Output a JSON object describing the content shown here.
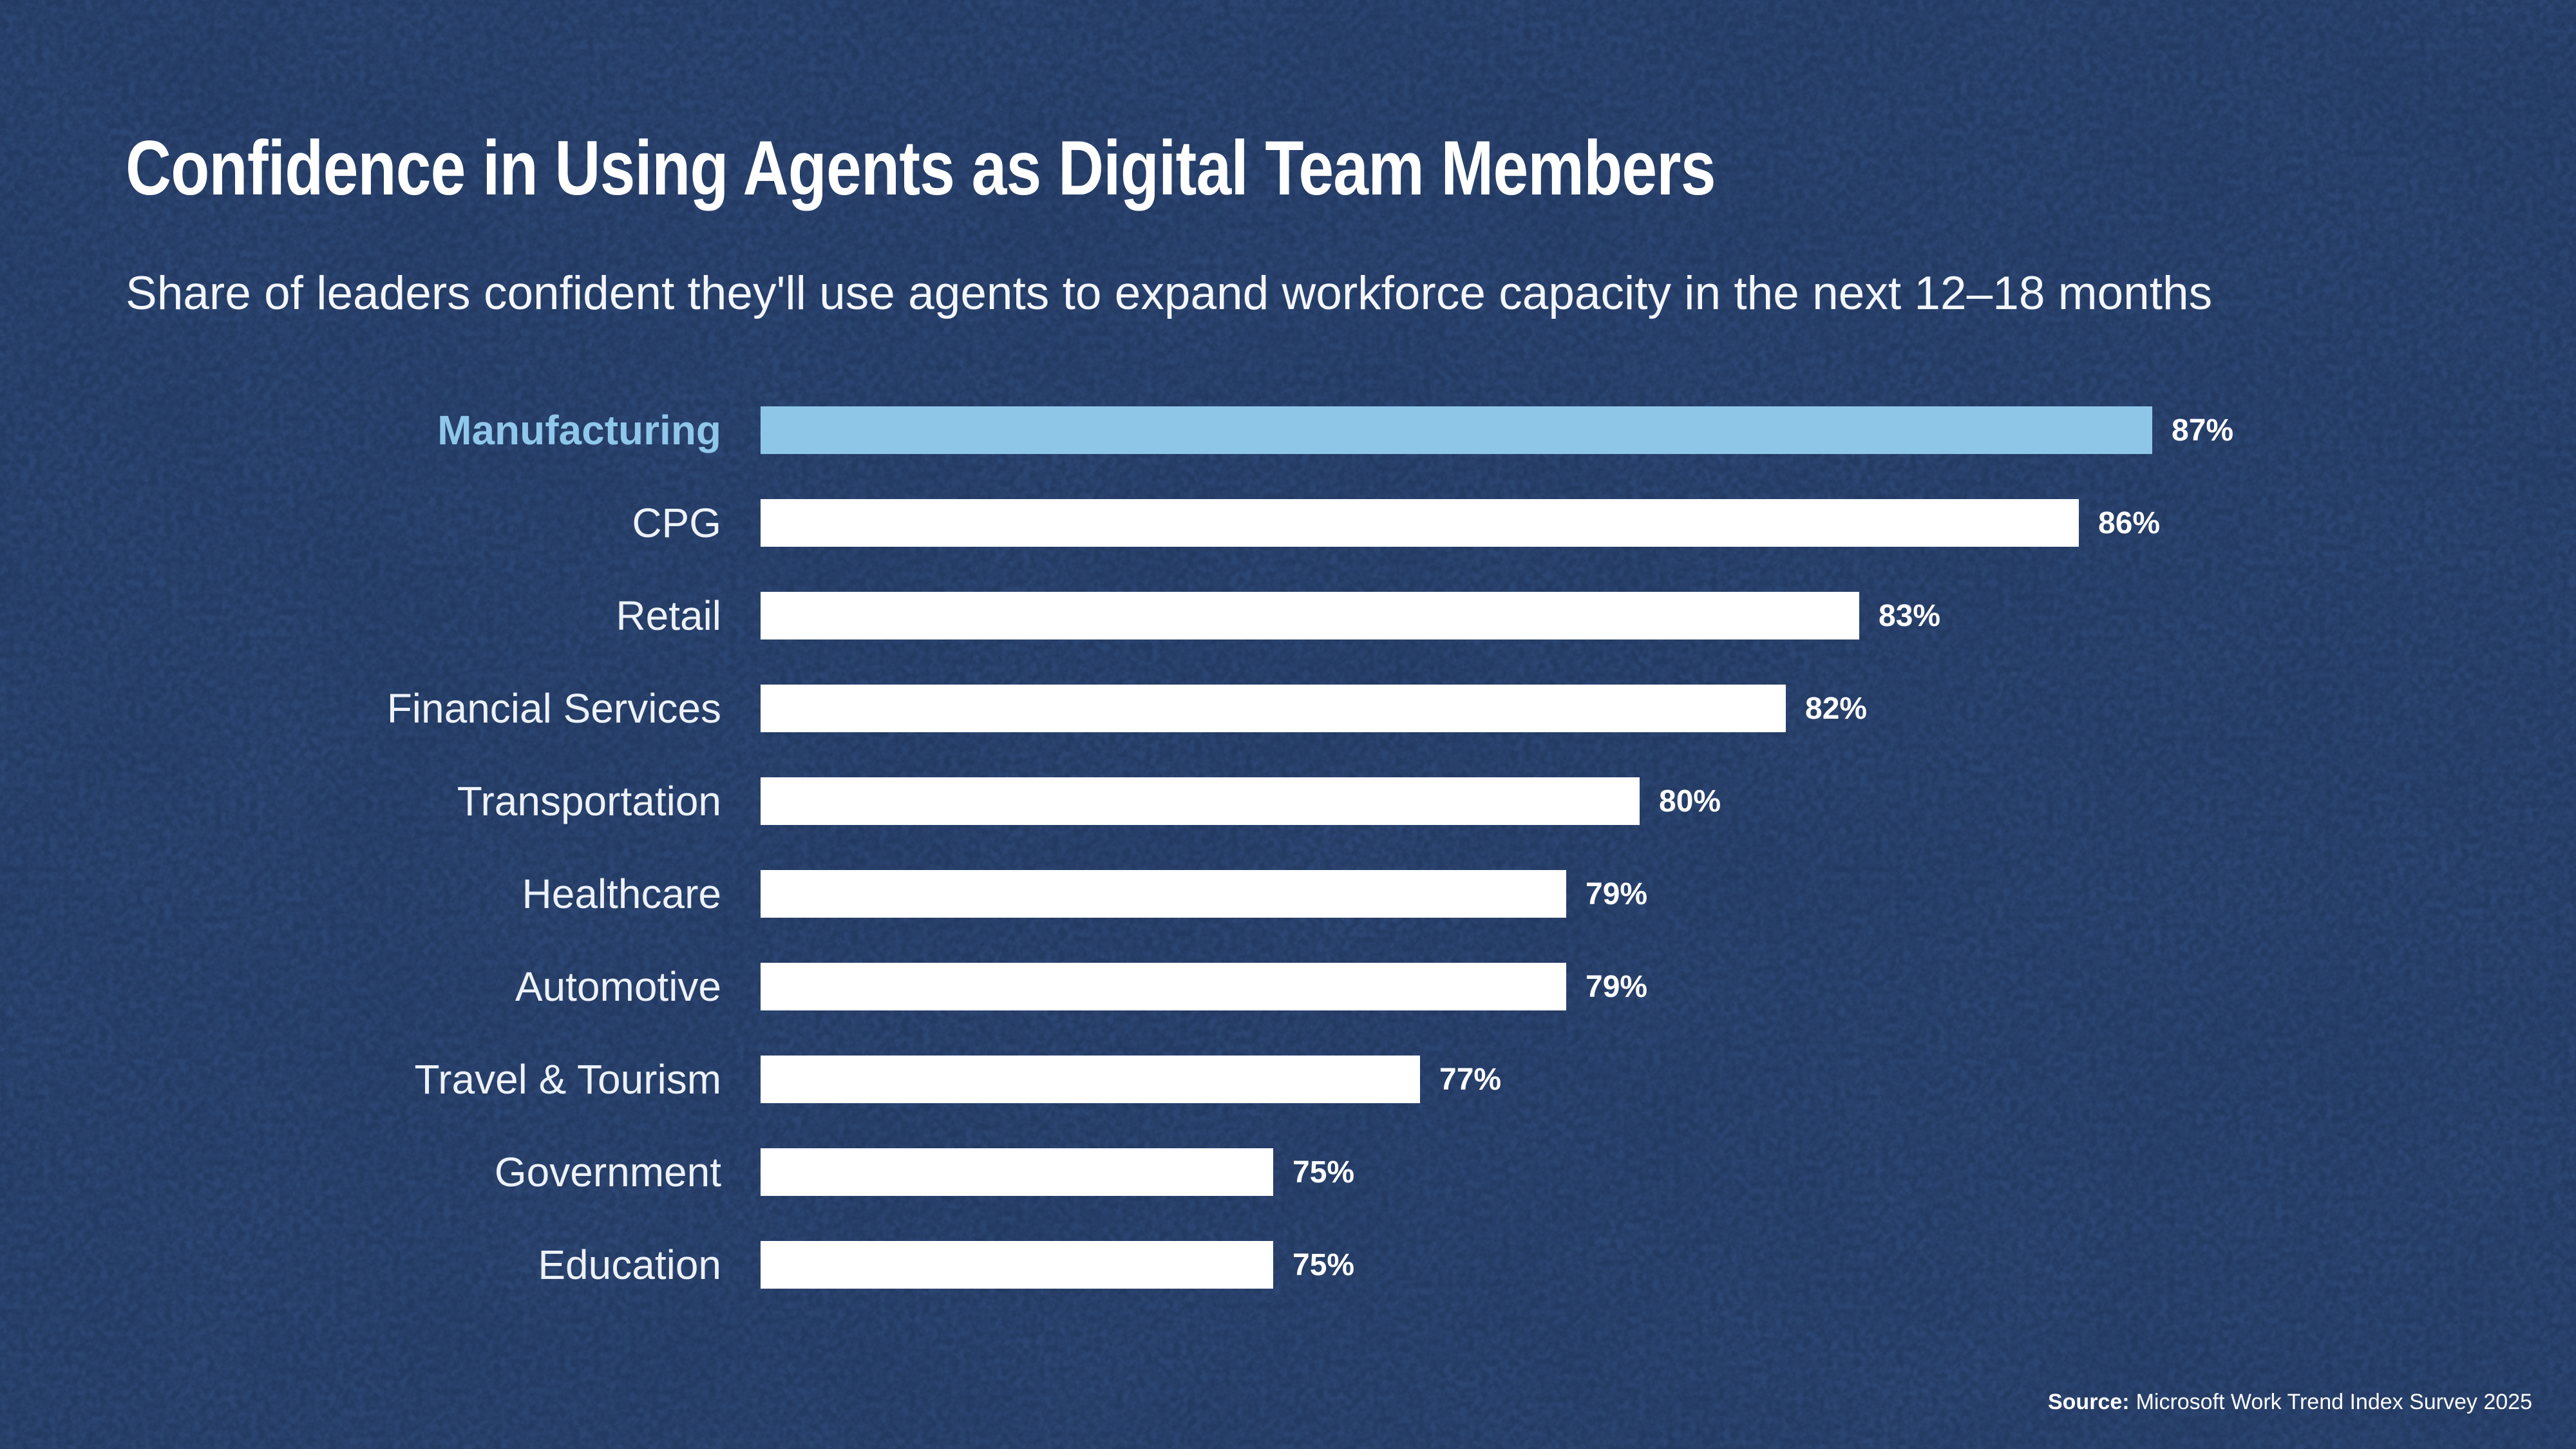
{
  "header": {
    "title": "Confidence in Using Agents as Digital Team Members",
    "subtitle": "Share of leaders confident they'll use agents to expand workforce capacity in the next 12–18 months"
  },
  "chart_data": {
    "type": "bar",
    "orientation": "horizontal",
    "title": "Confidence in Using Agents as Digital Team Members",
    "subtitle": "Share of leaders confident they'll use agents to expand workforce capacity in the next 12–18 months",
    "categories": [
      "Manufacturing",
      "CPG",
      "Retail",
      "Financial Services",
      "Transportation",
      "Healthcare",
      "Automotive",
      "Travel & Tourism",
      "Government",
      "Education"
    ],
    "values": [
      87,
      86,
      83,
      82,
      80,
      79,
      79,
      77,
      75,
      75
    ],
    "value_labels": [
      "87%",
      "86%",
      "83%",
      "82%",
      "80%",
      "79%",
      "79%",
      "77%",
      "75%",
      "75%"
    ],
    "xlim": [
      68,
      87
    ],
    "grid": false,
    "legend": false,
    "highlight_category": "Manufacturing",
    "bar_color": "#FFFFFF",
    "highlight_bar_color": "#8EC6E8",
    "highlight_label_color": "#8FC7EA",
    "label_color": "#EDF2F9",
    "value_label_color": "#FFFFFF"
  },
  "source": {
    "label": "Source:",
    "text": "Microsoft Work Trend Index Survey 2025"
  },
  "colors": {
    "background": "#2B4470",
    "background_speckle": "#1D3256",
    "title_text": "#FFFFFF",
    "subtitle_text": "#F3F6FB"
  }
}
